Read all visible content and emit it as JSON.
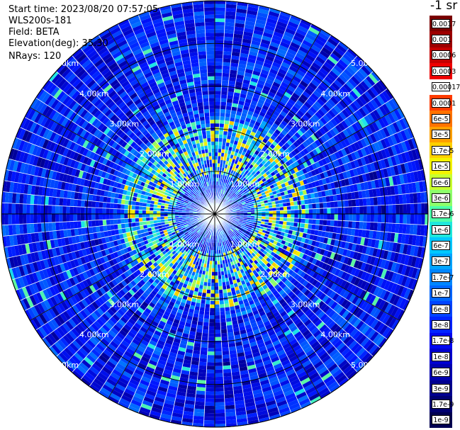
{
  "header": {
    "start_time": "Start time: 2023/08/20 07:57:05",
    "instrument": "WLS200s-181",
    "field": "Field: BETA",
    "elevation": "Elevation(deg): 35.30",
    "nrays": "NRays: 120"
  },
  "colorbar": {
    "title": "-1 sr",
    "labels": [
      "0.0017",
      "0.001",
      "0.0006",
      "0.0003",
      "0.00017",
      "0.0001",
      "6e-5",
      "3e-5",
      "1.7e-5",
      "1e-5",
      "6e-6",
      "3e-6",
      "1.7e-6",
      "1e-6",
      "6e-7",
      "3e-7",
      "1.7e-7",
      "1e-7",
      "6e-8",
      "3e-8",
      "1.7e-8",
      "1e-8",
      "6e-9",
      "3e-9",
      "1.7e-9",
      "1e-9"
    ],
    "colors": [
      "#7a0000",
      "#9c0000",
      "#c40000",
      "#ee0000",
      "#ffffff",
      "#ff3a00",
      "#ff7300",
      "#ffa000",
      "#ffd000",
      "#f3f300",
      "#c8ff30",
      "#8cff6a",
      "#4dffaa",
      "#1ee8dc",
      "#00c8ff",
      "#00a4ff",
      "#0086ff",
      "#0066ff",
      "#0044ff",
      "#0024ff",
      "#0008f0",
      "#0000d0",
      "#0000b0",
      "#000090",
      "#000070",
      "#000050"
    ]
  },
  "chart_data": {
    "type": "heatmap",
    "projection": "polar PPI",
    "field": "BETA",
    "units": "-1 sr",
    "elevation_deg": 35.3,
    "n_rays": 120,
    "range_rings_km": [
      1.0,
      2.0,
      3.0,
      4.0,
      5.0
    ],
    "range_ring_labels": [
      "1.00km",
      "2.00km",
      "3.00km",
      "4.00km",
      "5.00km"
    ],
    "radial_lines_every_deg": 30,
    "color_scale": "log",
    "vmin": 1e-09,
    "vmax": 0.0017,
    "background_beta_typical": 1.7e-08,
    "enhanced_aerosol_ring": {
      "range_km": [
        0.9,
        2.2
      ],
      "beta_peak": 3e-05
    }
  }
}
